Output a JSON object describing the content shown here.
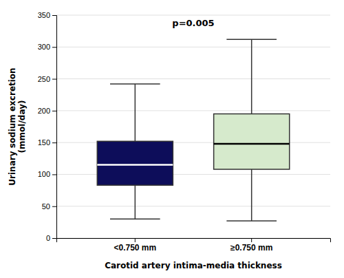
{
  "chart_data": {
    "type": "box",
    "categories": [
      "<0.750 mm",
      "≥0.750 mm"
    ],
    "boxes": [
      {
        "whisker_low": 30,
        "q1": 83,
        "median": 115,
        "q3": 152,
        "whisker_high": 242
      },
      {
        "whisker_low": 27,
        "q1": 108,
        "median": 148,
        "q3": 195,
        "whisker_high": 312
      }
    ],
    "colors": [
      "#0d0d5a",
      "#d6eacc"
    ],
    "xlabel": "Carotid artery intima-media thickness",
    "ylabel": [
      "Urinary sodium excretion",
      "(mmol/day)"
    ],
    "annotation": "p=0.005",
    "ylim": [
      0,
      350
    ],
    "yticks": [
      0,
      50,
      100,
      150,
      200,
      250,
      300,
      350
    ],
    "grid": true
  }
}
